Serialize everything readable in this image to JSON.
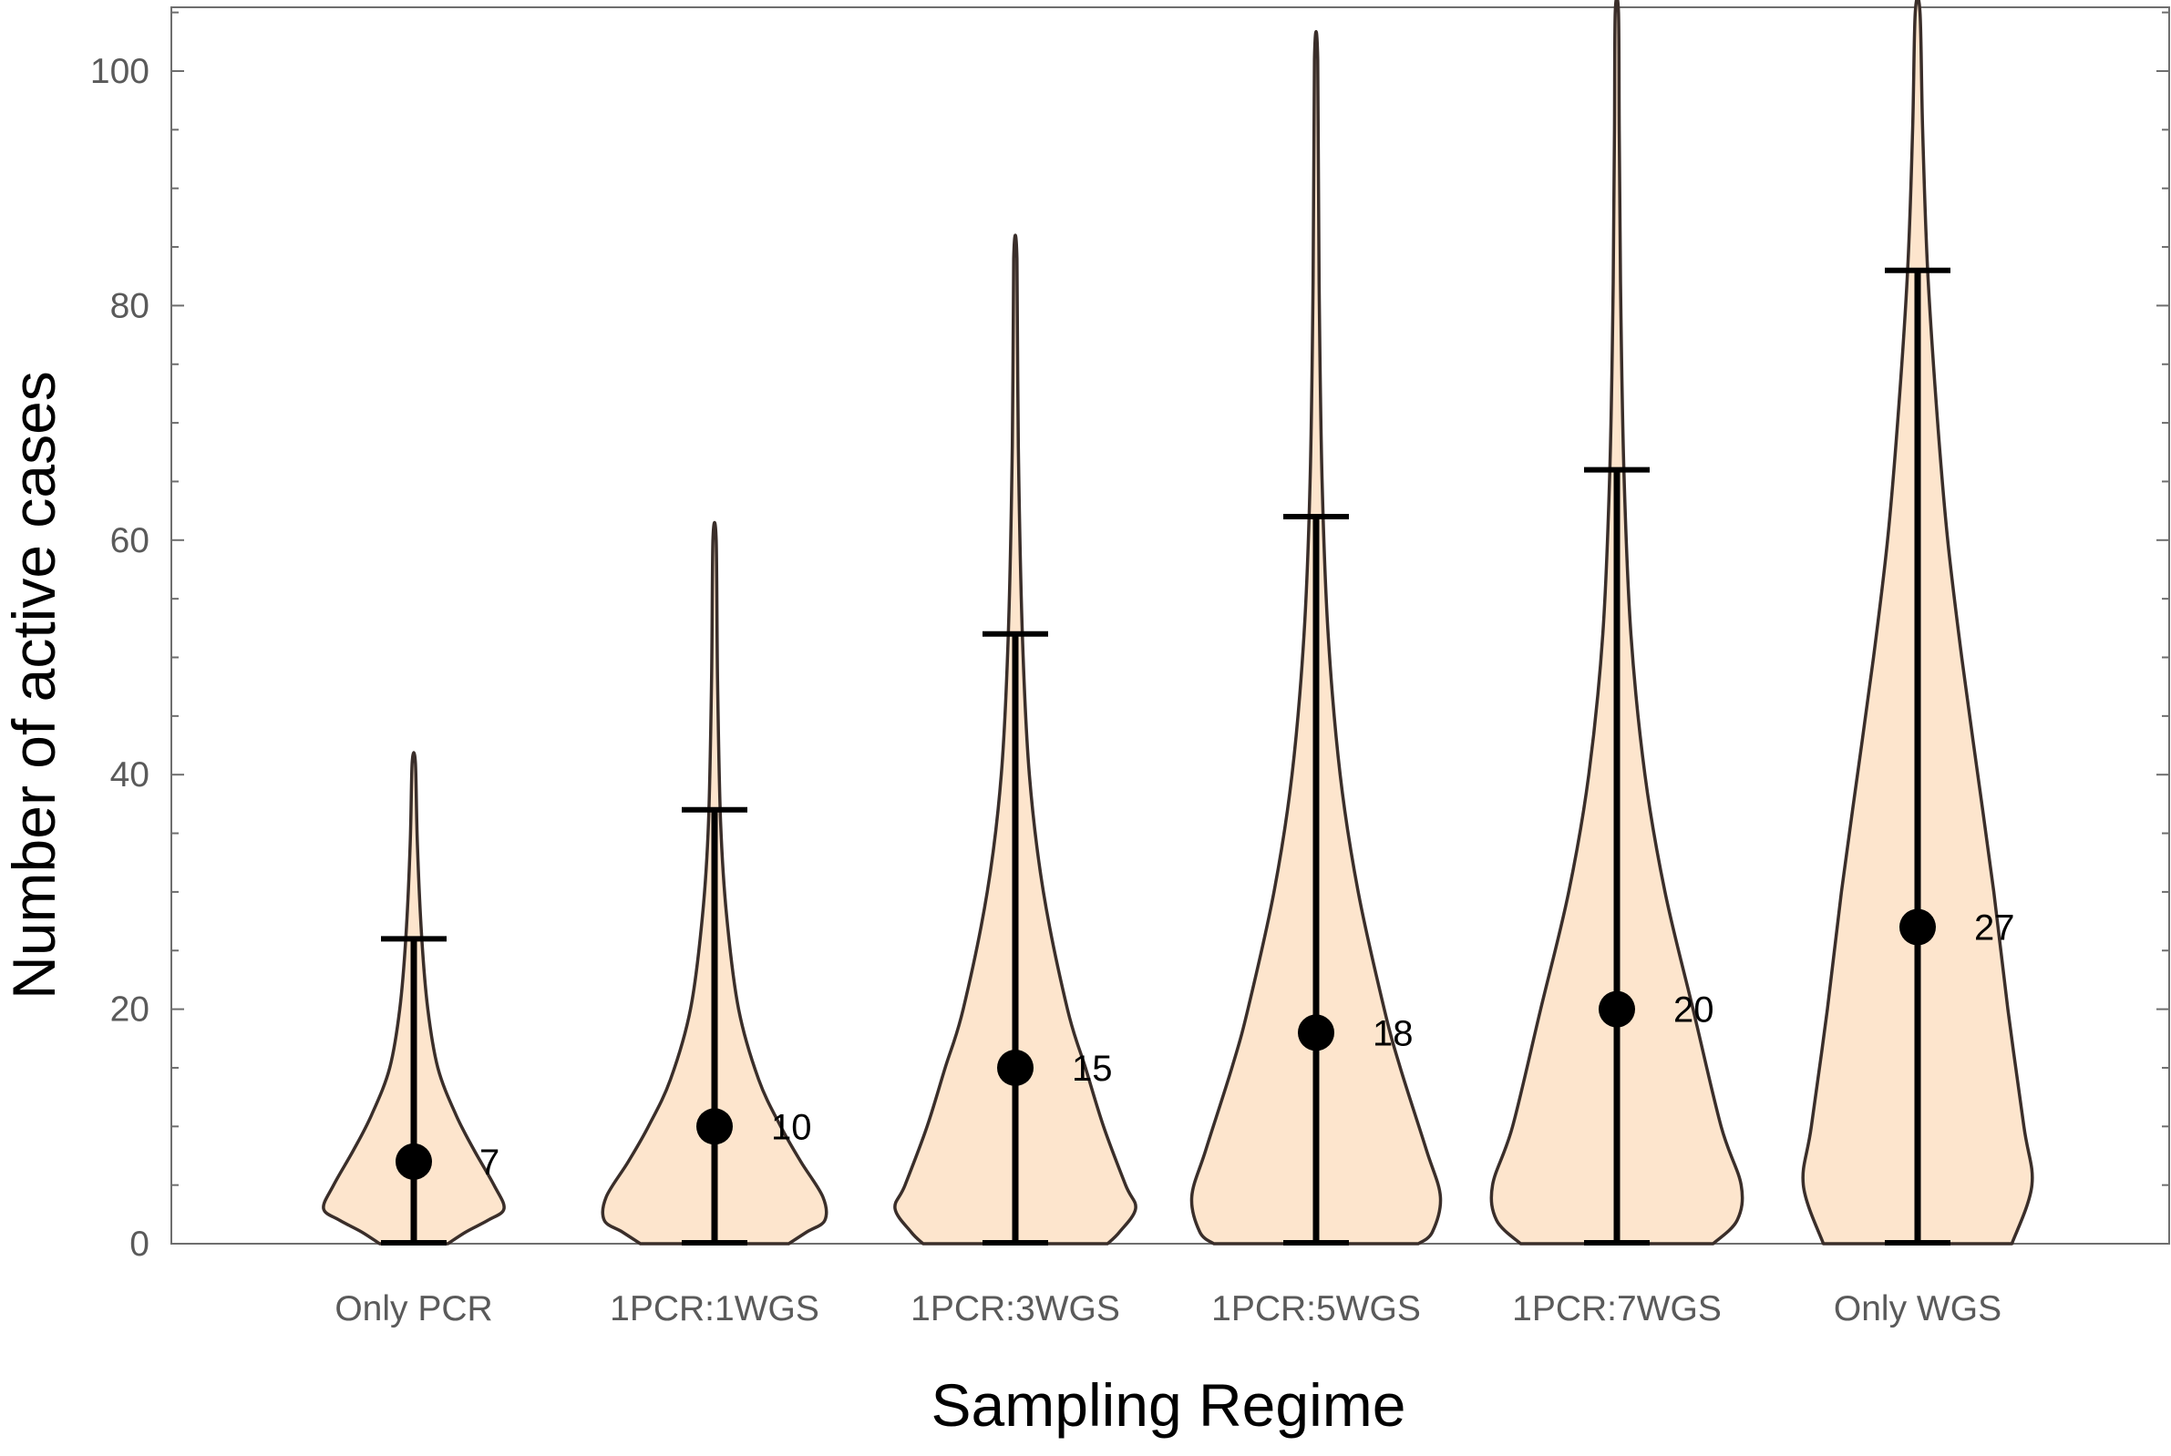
{
  "chart_data": {
    "type": "violin",
    "xlabel": "Sampling Regime",
    "ylabel": "Number of active cases",
    "ylim": [
      0,
      105
    ],
    "yticks": [
      0,
      20,
      40,
      60,
      80,
      100
    ],
    "categories": [
      "Only PCR",
      "1PCR:1WGS",
      "1PCR:3WGS",
      "1PCR:5WGS",
      "1PCR:7WGS",
      "Only WGS"
    ],
    "medians": [
      7,
      10,
      15,
      18,
      20,
      27
    ],
    "median_labels": [
      "7",
      "10",
      "15",
      "18",
      "20",
      "27"
    ],
    "whisker_low": [
      0,
      0,
      0,
      0,
      0,
      0
    ],
    "whisker_high": [
      26,
      37,
      52,
      62,
      66,
      83
    ],
    "max": [
      41,
      60,
      84,
      101,
      105,
      105
    ],
    "violin_profiles": [
      [
        [
          0,
          0.17
        ],
        [
          1,
          0.26
        ],
        [
          2,
          0.37
        ],
        [
          3,
          0.45
        ],
        [
          5,
          0.4
        ],
        [
          8,
          0.3
        ],
        [
          11,
          0.21
        ],
        [
          15,
          0.12
        ],
        [
          20,
          0.07
        ],
        [
          26,
          0.04
        ],
        [
          34,
          0.018
        ],
        [
          41,
          0.008
        ]
      ],
      [
        [
          0,
          0.37
        ],
        [
          1,
          0.46
        ],
        [
          2,
          0.55
        ],
        [
          4,
          0.54
        ],
        [
          7,
          0.43
        ],
        [
          10,
          0.33
        ],
        [
          14,
          0.22
        ],
        [
          20,
          0.12
        ],
        [
          28,
          0.06
        ],
        [
          36,
          0.03
        ],
        [
          48,
          0.015
        ],
        [
          60,
          0.008
        ]
      ],
      [
        [
          0,
          0.46
        ],
        [
          1,
          0.52
        ],
        [
          3,
          0.6
        ],
        [
          5,
          0.55
        ],
        [
          10,
          0.44
        ],
        [
          15,
          0.35
        ],
        [
          20,
          0.26
        ],
        [
          30,
          0.14
        ],
        [
          40,
          0.07
        ],
        [
          52,
          0.035
        ],
        [
          68,
          0.015
        ],
        [
          84,
          0.008
        ]
      ],
      [
        [
          0,
          0.51
        ],
        [
          1,
          0.58
        ],
        [
          4,
          0.62
        ],
        [
          8,
          0.55
        ],
        [
          15,
          0.42
        ],
        [
          20,
          0.34
        ],
        [
          30,
          0.21
        ],
        [
          40,
          0.12
        ],
        [
          52,
          0.06
        ],
        [
          65,
          0.03
        ],
        [
          82,
          0.015
        ],
        [
          101,
          0.008
        ]
      ],
      [
        [
          0,
          0.48
        ],
        [
          2,
          0.6
        ],
        [
          5,
          0.62
        ],
        [
          10,
          0.52
        ],
        [
          20,
          0.38
        ],
        [
          30,
          0.24
        ],
        [
          40,
          0.14
        ],
        [
          52,
          0.07
        ],
        [
          66,
          0.035
        ],
        [
          82,
          0.018
        ],
        [
          95,
          0.012
        ],
        [
          105,
          0.008
        ]
      ],
      [
        [
          0,
          0.47
        ],
        [
          5,
          0.57
        ],
        [
          10,
          0.53
        ],
        [
          20,
          0.45
        ],
        [
          30,
          0.38
        ],
        [
          40,
          0.3
        ],
        [
          50,
          0.22
        ],
        [
          60,
          0.15
        ],
        [
          70,
          0.1
        ],
        [
          83,
          0.05
        ],
        [
          95,
          0.025
        ],
        [
          105,
          0.012
        ]
      ]
    ],
    "colors": {
      "violin_fill": "#fde5cd",
      "violin_stroke": "#3a2e2a",
      "marker": "#000000",
      "frame": "#6e6e6e"
    },
    "grid": false,
    "legend": "none"
  }
}
